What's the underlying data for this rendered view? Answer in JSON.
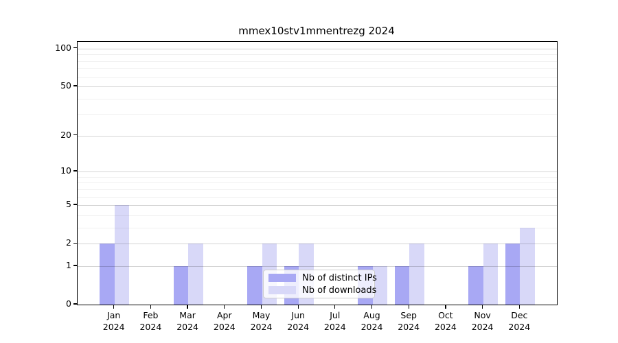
{
  "chart_data": {
    "type": "bar",
    "title": "mmex10stv1mmentrezg 2024",
    "xlabel": "",
    "ylabel": "",
    "year": "2024",
    "categories": [
      "Jan",
      "Feb",
      "Mar",
      "Apr",
      "May",
      "Jun",
      "Jul",
      "Aug",
      "Sep",
      "Oct",
      "Nov",
      "Dec"
    ],
    "series": [
      {
        "name": "Nb of distinct IPs",
        "color": "#a8a8f4",
        "values": [
          2,
          0,
          1,
          0,
          1,
          1,
          0,
          1,
          1,
          0,
          1,
          2
        ]
      },
      {
        "name": "Nb of downloads",
        "color": "#d8d8f8",
        "values": [
          5,
          0,
          2,
          0,
          2,
          2,
          0,
          1,
          2,
          0,
          2,
          3
        ]
      }
    ],
    "y_scale": "log10(value+1)",
    "y_ticks": [
      0,
      1,
      2,
      5,
      10,
      20,
      50,
      100
    ],
    "y_minor_gridlines": [
      3,
      4,
      6,
      7,
      8,
      9,
      30,
      40,
      60,
      70,
      80,
      90
    ],
    "y_top_value": 113,
    "xlim": [
      0,
      13
    ],
    "bar_width_fraction": 0.4,
    "grid": "horizontal, drawn above bars",
    "legend_position": "lower center inside plot"
  }
}
